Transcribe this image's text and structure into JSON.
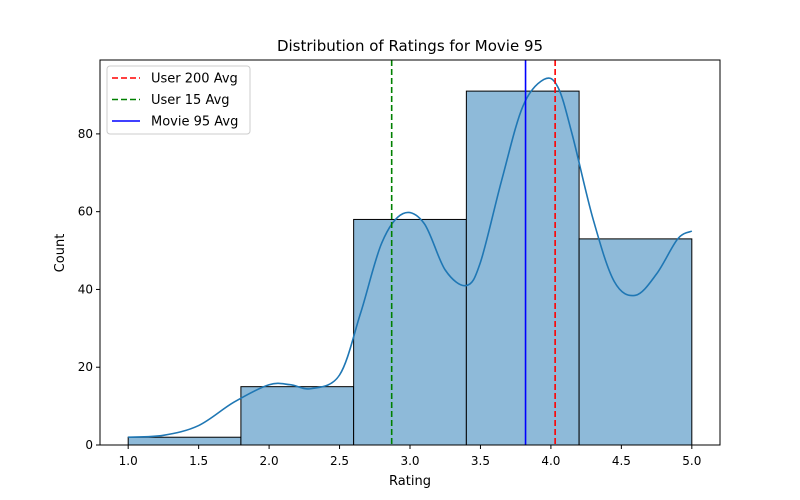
{
  "chart_data": {
    "type": "bar",
    "title": "Distribution of Ratings for Movie 95",
    "xlabel": "Rating",
    "ylabel": "Count",
    "bins": [
      {
        "start": 1.0,
        "end": 1.8,
        "count": 2
      },
      {
        "start": 1.8,
        "end": 2.6,
        "count": 15
      },
      {
        "start": 2.6,
        "end": 3.4,
        "count": 58
      },
      {
        "start": 3.4,
        "end": 4.2,
        "count": 91
      },
      {
        "start": 4.2,
        "end": 5.0,
        "count": 53
      }
    ],
    "kde": {
      "x": [
        1.0,
        1.25,
        1.5,
        1.75,
        2.0,
        2.15,
        2.3,
        2.5,
        2.65,
        2.8,
        2.95,
        3.1,
        3.25,
        3.4,
        3.5,
        3.65,
        3.8,
        3.95,
        4.05,
        4.15,
        4.3,
        4.45,
        4.6,
        4.75,
        4.9,
        5.0
      ],
      "y": [
        2,
        2.5,
        5,
        11,
        15.5,
        15.5,
        14.5,
        18,
        34,
        52,
        59.5,
        57,
        45,
        41,
        47,
        68,
        87,
        94,
        92,
        80,
        58,
        42,
        38.5,
        44,
        53,
        55
      ]
    },
    "vlines": [
      {
        "label": "User 200 Avg",
        "x": 4.03,
        "color": "#ff0000",
        "style": "dashed"
      },
      {
        "label": "User 15 Avg",
        "x": 2.87,
        "color": "#008000",
        "style": "dashed"
      },
      {
        "label": "Movie 95 Avg",
        "x": 3.82,
        "color": "#0000ff",
        "style": "solid"
      }
    ],
    "xlim": [
      0.8,
      5.2
    ],
    "ylim": [
      0,
      99
    ],
    "xticks": [
      1.0,
      1.5,
      2.0,
      2.5,
      3.0,
      3.5,
      4.0,
      4.5,
      5.0
    ],
    "xtick_labels": [
      "1.0",
      "1.5",
      "2.0",
      "2.5",
      "3.0",
      "3.5",
      "4.0",
      "4.5",
      "5.0"
    ],
    "yticks": [
      0,
      20,
      40,
      60,
      80
    ],
    "ytick_labels": [
      "0",
      "20",
      "40",
      "60",
      "80"
    ],
    "bar_color": "#8ebad9",
    "kde_color": "#1f77b4",
    "grid": false,
    "legend_position": "top-left"
  }
}
